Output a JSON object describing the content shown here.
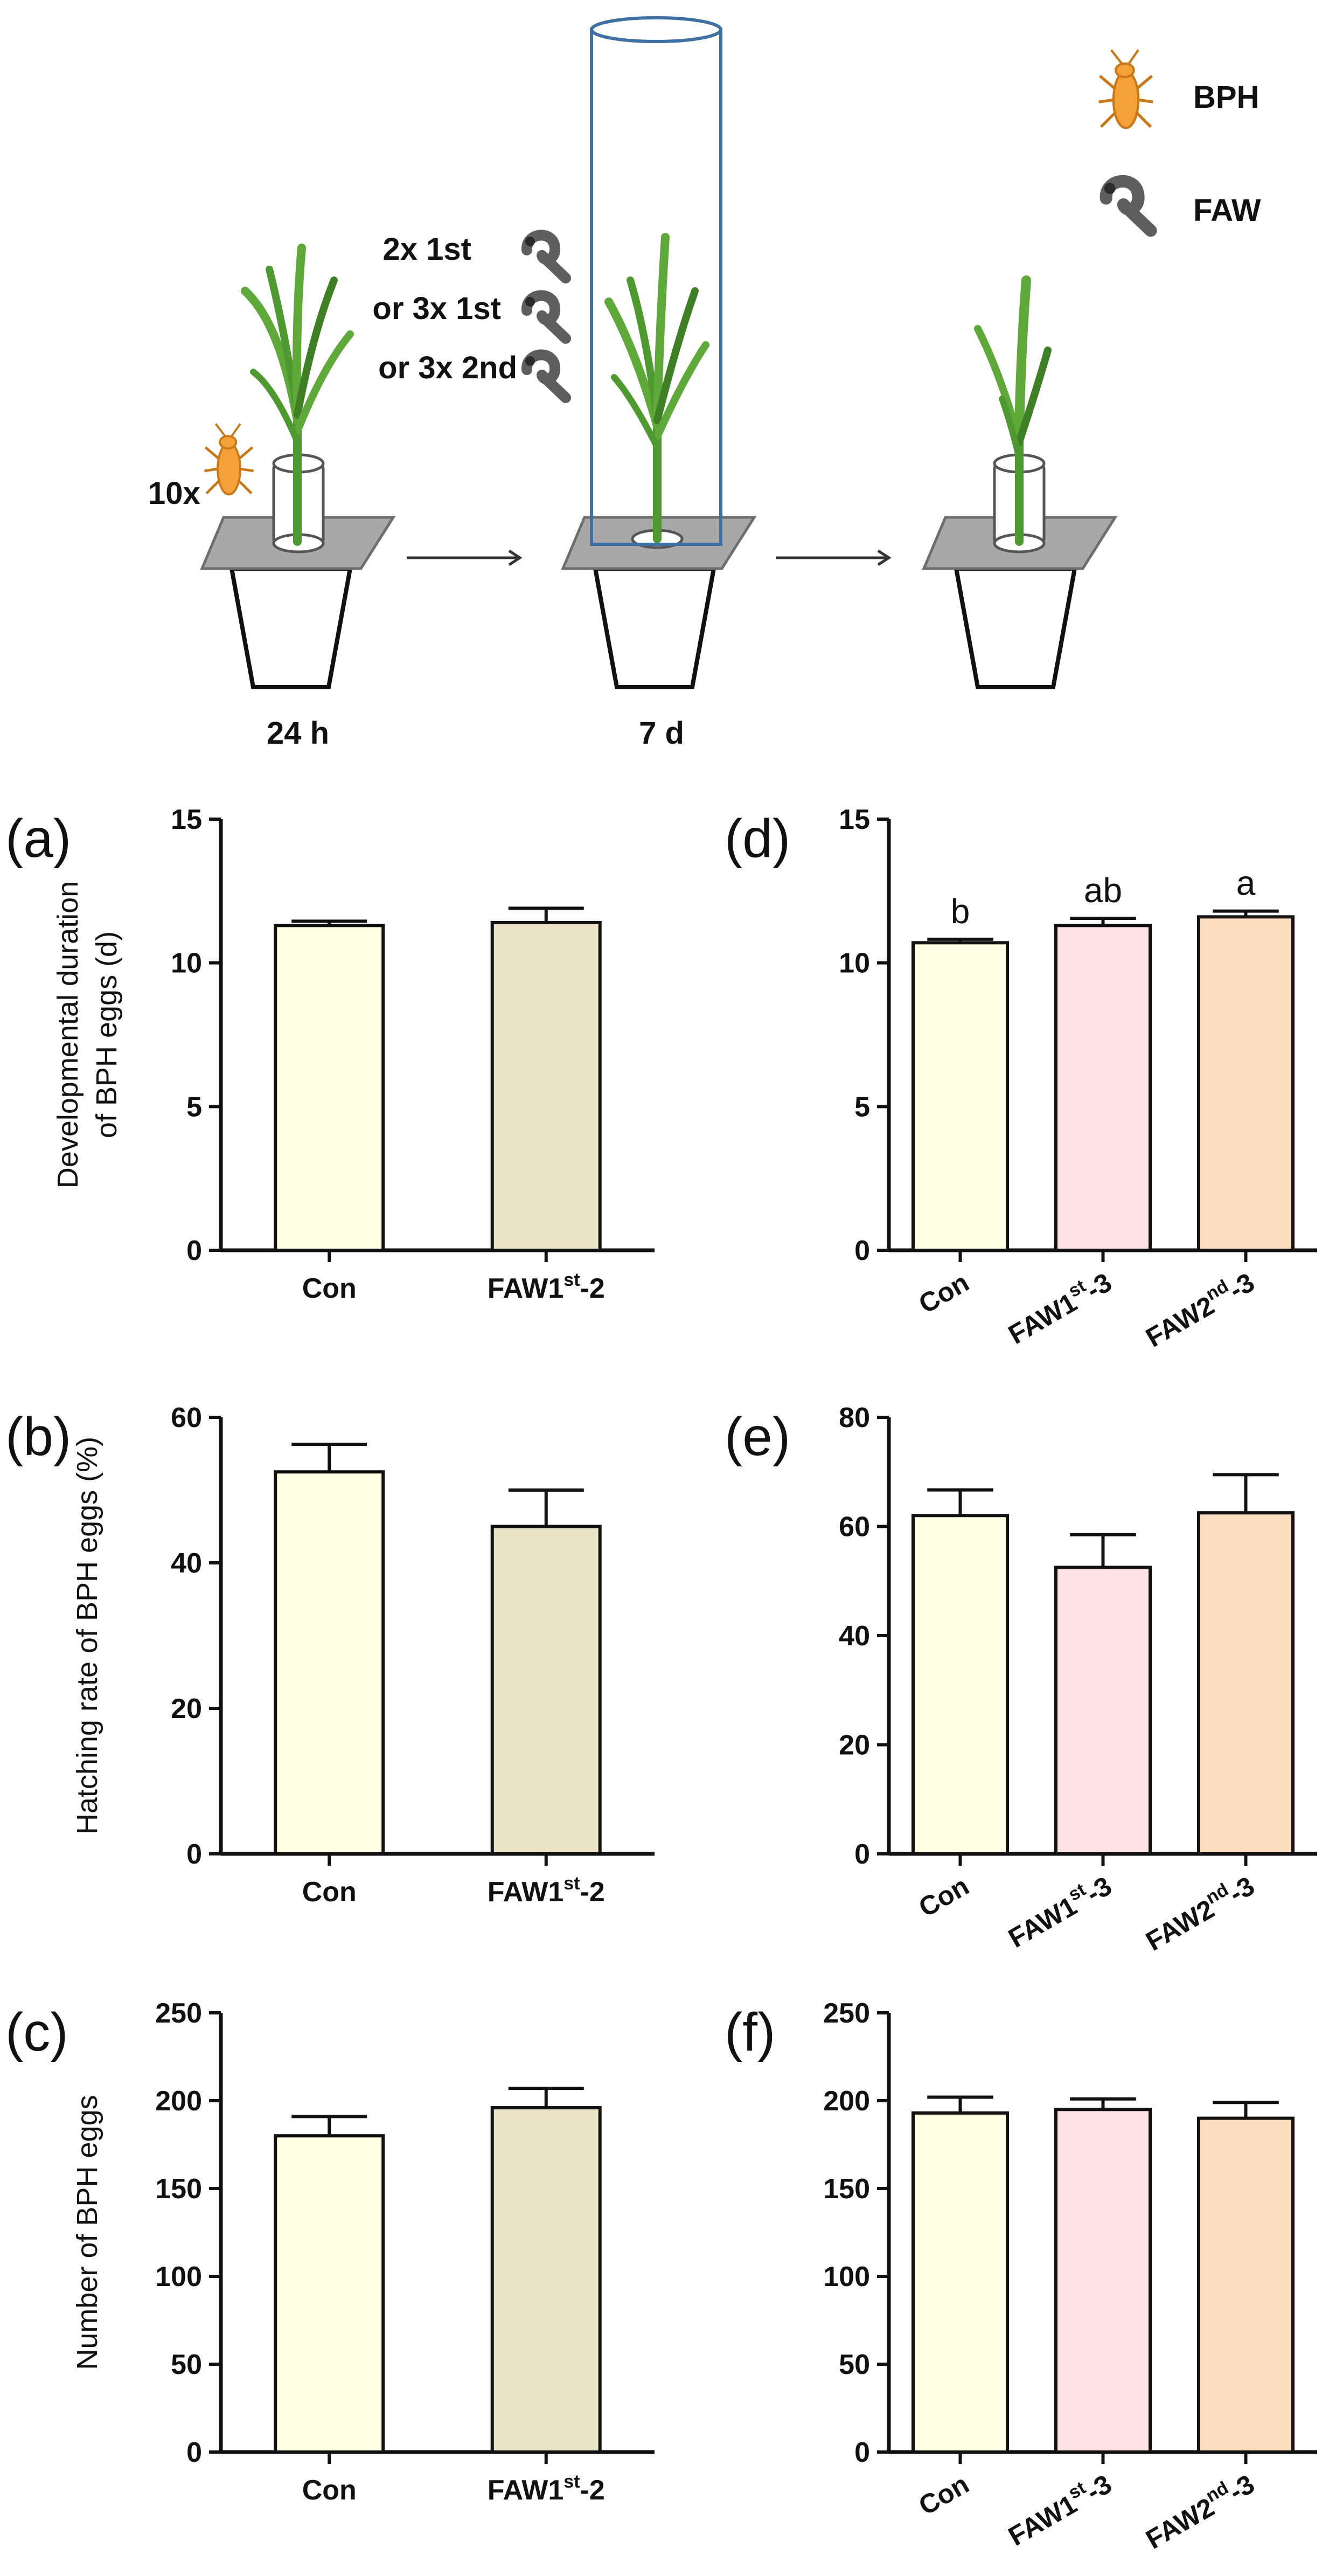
{
  "schematic": {
    "legend": [
      {
        "label": "BPH",
        "icon": "bph-insect-icon"
      },
      {
        "label": "FAW",
        "icon": "faw-larva-icon"
      }
    ],
    "bph_count_label": "10x",
    "faw_treatment_labels": [
      "2x 1st",
      "or 3x 1st",
      "or 3x 2nd"
    ],
    "stage_labels": [
      "24 h",
      "7 d"
    ]
  },
  "colors": {
    "con": "#FFFFE4",
    "faw1st2": "#E9E3C8",
    "faw1st3": "#FDE1E3",
    "faw2nd3": "#FDDDC0",
    "plant_green": "#5FA83A",
    "plant_dark": "#3F7F25",
    "bph_orange": "#F4A13A",
    "faw_gray": "#5E5E5E",
    "cylinder_blue": "#3F6FA3",
    "tray_gray": "#8C8C8C"
  },
  "chart_data": [
    {
      "panel": "(a)",
      "type": "bar",
      "categories": [
        {
          "base": "Con",
          "sup": "",
          "suffix": ""
        },
        {
          "base": "FAW1",
          "sup": "st",
          "suffix": "-2"
        }
      ],
      "values": [
        11.3,
        11.4
      ],
      "errors": [
        0.15,
        0.5
      ],
      "fill_keys": [
        "con",
        "faw1st2"
      ],
      "ylabel_lines": [
        "Developmental duration",
        "of BPH eggs (d)"
      ],
      "ylim": [
        0,
        15
      ],
      "yticks": [
        "0",
        "5",
        "10",
        "15"
      ],
      "letters": [],
      "rotated_xlabels": false
    },
    {
      "panel": "(b)",
      "type": "bar",
      "categories": [
        {
          "base": "Con",
          "sup": "",
          "suffix": ""
        },
        {
          "base": "FAW1",
          "sup": "st",
          "suffix": "-2"
        }
      ],
      "values": [
        52.5,
        45
      ],
      "errors": [
        3.8,
        5
      ],
      "fill_keys": [
        "con",
        "faw1st2"
      ],
      "ylabel_lines": [
        "Hatching rate of BPH eggs (%)"
      ],
      "ylim": [
        0,
        60
      ],
      "yticks": [
        "0",
        "20",
        "40",
        "60"
      ],
      "letters": [],
      "rotated_xlabels": false
    },
    {
      "panel": "(c)",
      "type": "bar",
      "categories": [
        {
          "base": "Con",
          "sup": "",
          "suffix": ""
        },
        {
          "base": "FAW1",
          "sup": "st",
          "suffix": "-2"
        }
      ],
      "values": [
        180,
        196
      ],
      "errors": [
        11,
        11
      ],
      "fill_keys": [
        "con",
        "faw1st2"
      ],
      "ylabel_lines": [
        "Number of BPH eggs"
      ],
      "ylim": [
        0,
        250
      ],
      "yticks": [
        "0",
        "50",
        "100",
        "150",
        "200",
        "250"
      ],
      "letters": [],
      "rotated_xlabels": false
    },
    {
      "panel": "(d)",
      "type": "bar",
      "categories": [
        {
          "base": "Con",
          "sup": "",
          "suffix": ""
        },
        {
          "base": "FAW1",
          "sup": "st",
          "suffix": "-3"
        },
        {
          "base": "FAW2",
          "sup": "nd",
          "suffix": "-3"
        }
      ],
      "values": [
        10.7,
        11.3,
        11.6
      ],
      "errors": [
        0.12,
        0.25,
        0.2
      ],
      "fill_keys": [
        "con",
        "faw1st3",
        "faw2nd3"
      ],
      "ylabel_lines": [],
      "ylim": [
        0,
        15
      ],
      "yticks": [
        "0",
        "5",
        "10",
        "15"
      ],
      "letters": [
        "b",
        "ab",
        "a"
      ],
      "rotated_xlabels": true
    },
    {
      "panel": "(e)",
      "type": "bar",
      "categories": [
        {
          "base": "Con",
          "sup": "",
          "suffix": ""
        },
        {
          "base": "FAW1",
          "sup": "st",
          "suffix": "-3"
        },
        {
          "base": "FAW2",
          "sup": "nd",
          "suffix": "-3"
        }
      ],
      "values": [
        62,
        52.5,
        62.5
      ],
      "errors": [
        4.7,
        6,
        7
      ],
      "fill_keys": [
        "con",
        "faw1st3",
        "faw2nd3"
      ],
      "ylabel_lines": [],
      "ylim": [
        0,
        80
      ],
      "yticks": [
        "0",
        "20",
        "40",
        "60",
        "80"
      ],
      "letters": [],
      "rotated_xlabels": true
    },
    {
      "panel": "(f)",
      "type": "bar",
      "categories": [
        {
          "base": "Con",
          "sup": "",
          "suffix": ""
        },
        {
          "base": "FAW1",
          "sup": "st",
          "suffix": "-3"
        },
        {
          "base": "FAW2",
          "sup": "nd",
          "suffix": "-3"
        }
      ],
      "values": [
        193,
        195,
        190
      ],
      "errors": [
        9,
        6,
        9
      ],
      "fill_keys": [
        "con",
        "faw1st3",
        "faw2nd3"
      ],
      "ylabel_lines": [],
      "ylim": [
        0,
        250
      ],
      "yticks": [
        "0",
        "50",
        "100",
        "150",
        "200",
        "250"
      ],
      "letters": [],
      "rotated_xlabels": true
    }
  ]
}
